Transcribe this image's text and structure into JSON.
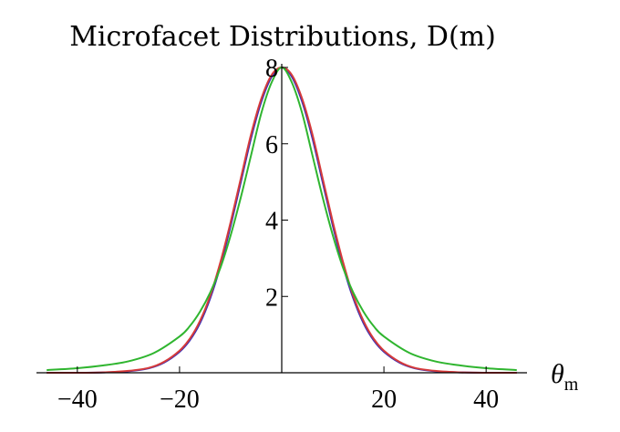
{
  "chart_data": {
    "type": "line",
    "title": "Microfacet Distributions, D(m)",
    "xlabel": "θ",
    "xlabel_subscript": "m",
    "ylabel": "",
    "xlim": [
      -48,
      48
    ],
    "ylim": [
      0,
      8
    ],
    "x_ticks": [
      -40,
      -20,
      20,
      40
    ],
    "x_tick_labels": [
      "−40",
      "−20",
      "20",
      "40"
    ],
    "y_ticks": [
      2,
      4,
      6,
      8
    ],
    "y_tick_labels": [
      "2",
      "4",
      "6",
      "8"
    ],
    "grid": false,
    "legend": "none",
    "series": [
      {
        "color": "#3b2fb5",
        "x": [
          -46,
          -40,
          -35,
          -30,
          -26,
          -23,
          -20,
          -18,
          -16,
          -14,
          -12,
          -10,
          -8,
          -6,
          -4,
          -2,
          0,
          2,
          4,
          6,
          8,
          10,
          12,
          14,
          16,
          18,
          20,
          23,
          26,
          30,
          35,
          40,
          46
        ],
        "y": [
          0.0,
          0.0,
          0.01,
          0.04,
          0.12,
          0.27,
          0.55,
          0.85,
          1.3,
          1.95,
          2.8,
          3.85,
          5.0,
          6.15,
          7.1,
          7.75,
          8.0,
          7.75,
          7.1,
          6.15,
          5.0,
          3.85,
          2.8,
          1.95,
          1.3,
          0.85,
          0.55,
          0.27,
          0.12,
          0.04,
          0.01,
          0.0,
          0.0
        ]
      },
      {
        "color": "#d63b3b",
        "x": [
          -46,
          -40,
          -35,
          -30,
          -26,
          -23,
          -20,
          -18,
          -16,
          -14,
          -12,
          -10,
          -8,
          -6,
          -4,
          -2,
          0,
          2,
          4,
          6,
          8,
          10,
          12,
          14,
          16,
          18,
          20,
          23,
          26,
          30,
          35,
          40,
          46
        ],
        "y": [
          0.0,
          0.0,
          0.01,
          0.05,
          0.13,
          0.29,
          0.58,
          0.89,
          1.36,
          2.02,
          2.9,
          3.95,
          5.1,
          6.25,
          7.18,
          7.8,
          8.0,
          7.8,
          7.18,
          6.25,
          5.1,
          3.95,
          2.9,
          2.02,
          1.36,
          0.89,
          0.58,
          0.29,
          0.13,
          0.05,
          0.01,
          0.0,
          0.0
        ]
      },
      {
        "color": "#2fb52f",
        "x": [
          -46,
          -40,
          -35,
          -30,
          -25,
          -20,
          -18,
          -16,
          -14,
          -12,
          -10,
          -8,
          -6,
          -4,
          -2,
          0,
          2,
          4,
          6,
          8,
          10,
          12,
          14,
          16,
          18,
          20,
          25,
          30,
          35,
          40,
          46
        ],
        "y": [
          0.07,
          0.12,
          0.19,
          0.3,
          0.52,
          0.95,
          1.22,
          1.6,
          2.1,
          2.75,
          3.6,
          4.6,
          5.7,
          6.8,
          7.6,
          8.0,
          7.6,
          6.8,
          5.7,
          4.6,
          3.6,
          2.75,
          2.1,
          1.6,
          1.22,
          0.95,
          0.52,
          0.3,
          0.19,
          0.12,
          0.07
        ]
      }
    ]
  }
}
